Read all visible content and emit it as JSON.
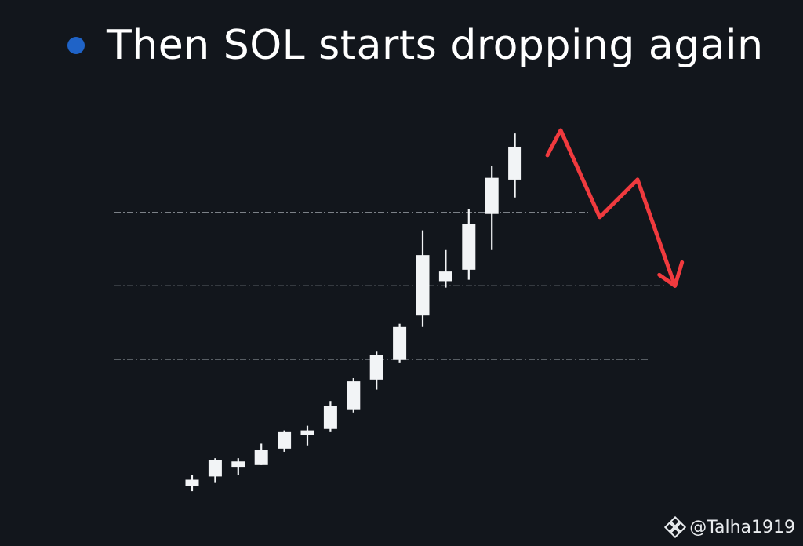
{
  "headline": {
    "bullet_color": "#1f63c7",
    "text": "Then SOL starts dropping again"
  },
  "chart_data": {
    "type": "candlestick",
    "title": "",
    "xlabel": "",
    "ylabel": "",
    "ylim": [
      0,
      100
    ],
    "grid": false,
    "candle_color": "#f2f4f6",
    "level_lines": [
      {
        "value": 36,
        "style": "dash-dot"
      },
      {
        "value": 56.5,
        "style": "dash-dot"
      },
      {
        "value": 77,
        "style": "dash-dot"
      }
    ],
    "candles": [
      {
        "o": 0.5,
        "h": 3.7,
        "l": -0.9,
        "c": 2.3
      },
      {
        "o": 3.2,
        "h": 8.3,
        "l": 1.4,
        "c": 7.8
      },
      {
        "o": 5.9,
        "h": 8.3,
        "l": 3.7,
        "c": 7.4
      },
      {
        "o": 6.4,
        "h": 12.4,
        "l": 6.4,
        "c": 10.6
      },
      {
        "o": 11.0,
        "h": 16.1,
        "l": 10.1,
        "c": 15.6
      },
      {
        "o": 14.7,
        "h": 17.4,
        "l": 11.9,
        "c": 16.1
      },
      {
        "o": 16.5,
        "h": 24.3,
        "l": 15.6,
        "c": 22.9
      },
      {
        "o": 22.0,
        "h": 30.7,
        "l": 21.1,
        "c": 29.8
      },
      {
        "o": 30.3,
        "h": 38.1,
        "l": 27.5,
        "c": 37.2
      },
      {
        "o": 35.8,
        "h": 45.9,
        "l": 34.9,
        "c": 45.0
      },
      {
        "o": 48.2,
        "h": 72.0,
        "l": 45.0,
        "c": 65.1
      },
      {
        "o": 57.8,
        "h": 66.5,
        "l": 56.0,
        "c": 60.5
      },
      {
        "o": 61.0,
        "h": 78.0,
        "l": 58.2,
        "c": 73.8
      },
      {
        "o": 76.6,
        "h": 89.9,
        "l": 66.5,
        "c": 86.7
      },
      {
        "o": 86.2,
        "h": 99.1,
        "l": 81.2,
        "c": 95.4
      }
    ],
    "annotation": {
      "type": "downward-arrow",
      "color": "#f03a3e",
      "path": [
        [
          0,
          93
        ],
        [
          3.2,
          100
        ],
        [
          12.6,
          75.7
        ],
        [
          21.7,
          86.2
        ],
        [
          30.7,
          56.5
        ]
      ]
    }
  },
  "watermark": {
    "icon": "binance-diamond-icon",
    "handle": "@Talha1919"
  }
}
